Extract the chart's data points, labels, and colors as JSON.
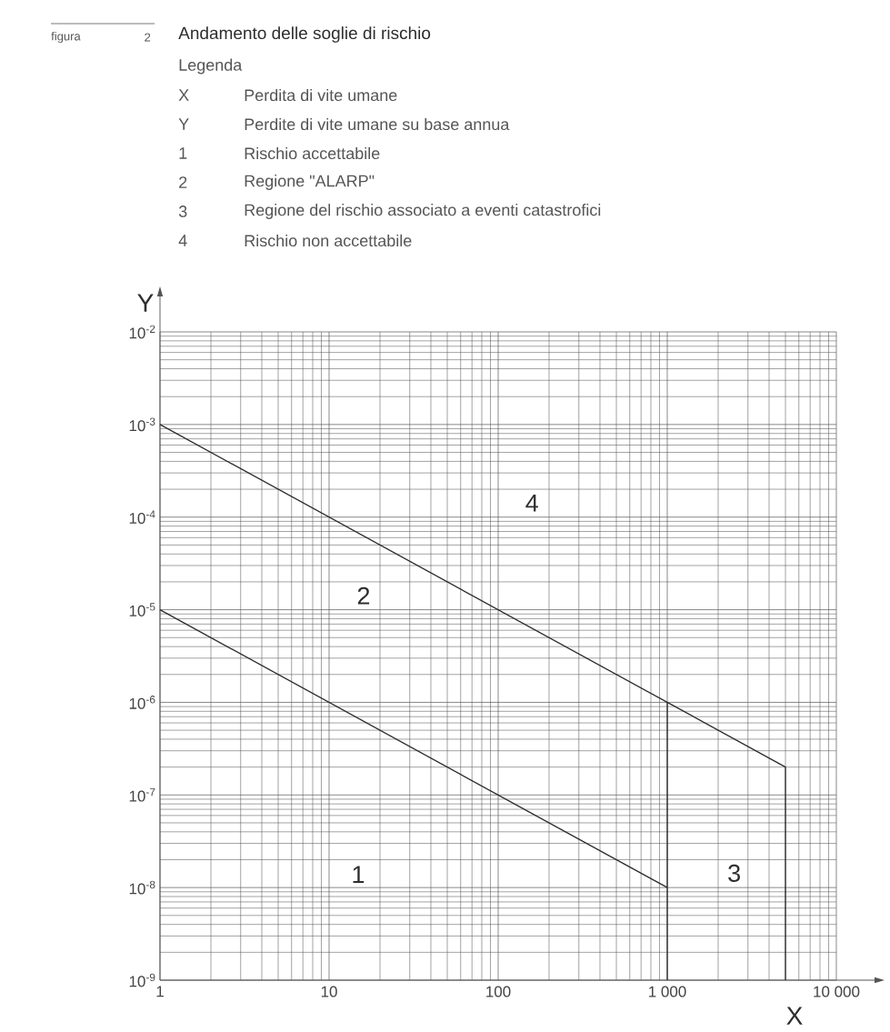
{
  "chart_data": {
    "type": "line",
    "title": "Andamento delle soglie di rischio",
    "xlabel": "X",
    "ylabel": "Y",
    "log": "xy",
    "grid": true,
    "xlim": [
      1,
      10000
    ],
    "ylim": [
      1e-09,
      0.01
    ],
    "xticks": [
      1,
      10,
      100,
      {
        "value": 1000,
        "label": "1 000"
      },
      {
        "value": 10000,
        "label": "10 000"
      }
    ],
    "yticks": [
      {
        "value": 1e-09,
        "label": "10$^{-9}$"
      },
      {
        "value": 1e-08,
        "label": "10$^{-8}$"
      },
      {
        "value": 1e-07,
        "label": "10$^{-7}$"
      },
      {
        "value": 1e-06,
        "label": "10$^{-6}$"
      },
      {
        "value": 1e-05,
        "label": "10$^{-5}$"
      },
      {
        "value": 0.0001,
        "label": "10$^{-4}$"
      },
      {
        "value": 0.001,
        "label": "10$^{-3}$"
      },
      {
        "value": 0.01,
        "label": "10$^{-2}$"
      }
    ],
    "series": [
      {
        "color": "#2b2b2b",
        "x": [
          1,
          1000,
          5000,
          5000
        ],
        "values": [
          0.001,
          1e-06,
          2e-07,
          1e-09
        ]
      },
      {
        "color": "#2b2b2b",
        "x": [
          1,
          1000
        ],
        "values": [
          1e-05,
          1e-08
        ]
      },
      {
        "color": "#2b2b2b",
        "x": [
          1000,
          1000
        ],
        "values": [
          1e-06,
          1e-09
        ]
      }
    ],
    "annotations": [
      "figura",
      "2",
      "Legenda",
      "X",
      "Perdita di vite umane",
      "Y",
      "Perdite di vite umane su base annua",
      "1",
      "Rischio accettabile",
      "2",
      "Regione \"ALARP\"",
      "3",
      "Regione del rischio associato a eventi catastrofici",
      "4",
      "Rischio non accettabile",
      "1",
      "2",
      "3",
      "4"
    ]
  }
}
